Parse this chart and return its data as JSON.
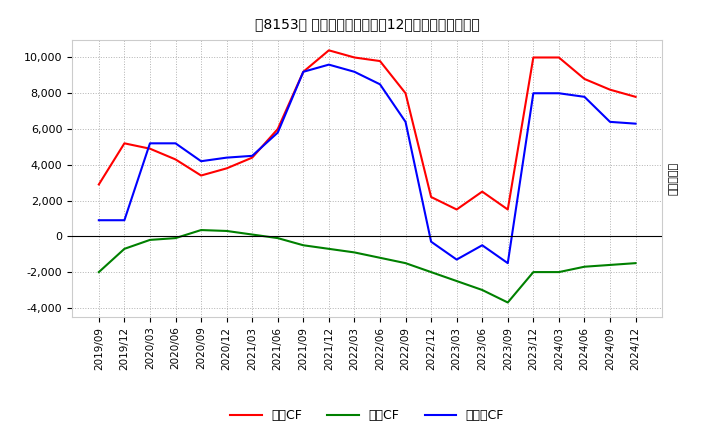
{
  "title": "　3、8153、 キャッシュフローの12か月移動合計の推移",
  "title_text": "【8153】 キャッシュフローの12か月移動合計の推移",
  "ylabel": "（百万円）",
  "ylim": [
    -4500,
    11000
  ],
  "yticks": [
    -4000,
    -2000,
    0,
    2000,
    4000,
    6000,
    8000,
    10000
  ],
  "dates": [
    "2019/09",
    "2019/12",
    "2020/03",
    "2020/06",
    "2020/09",
    "2020/12",
    "2021/03",
    "2021/06",
    "2021/09",
    "2021/12",
    "2022/03",
    "2022/06",
    "2022/09",
    "2022/12",
    "2023/03",
    "2023/06",
    "2023/09",
    "2023/12",
    "2024/03",
    "2024/06",
    "2024/09",
    "2024/12"
  ],
  "operating_cf": [
    2900,
    5200,
    4900,
    4300,
    3400,
    3800,
    4400,
    6000,
    9200,
    10400,
    10000,
    9800,
    8000,
    2200,
    1500,
    2500,
    1500,
    10000,
    10000,
    8800,
    8200,
    7800
  ],
  "investing_cf": [
    -2000,
    -700,
    -200,
    -100,
    350,
    300,
    100,
    -100,
    -500,
    -700,
    -900,
    -1200,
    -1500,
    -2000,
    -2500,
    -3000,
    -3700,
    -2000,
    -2000,
    -1700,
    -1600,
    -1500
  ],
  "free_cf": [
    900,
    900,
    5200,
    5200,
    4200,
    4400,
    4500,
    5800,
    9200,
    9600,
    9200,
    8500,
    6400,
    -300,
    -1300,
    -500,
    -1500,
    8000,
    8000,
    7800,
    6400,
    6300
  ],
  "operating_color": "#FF0000",
  "investing_color": "#008000",
  "free_color": "#0000FF",
  "legend_labels": [
    "営業CF",
    "投資CF",
    "フリーCF"
  ],
  "background_color": "#FFFFFF",
  "plot_bg_color": "#FFFFFF",
  "grid_color": "#AAAAAA"
}
